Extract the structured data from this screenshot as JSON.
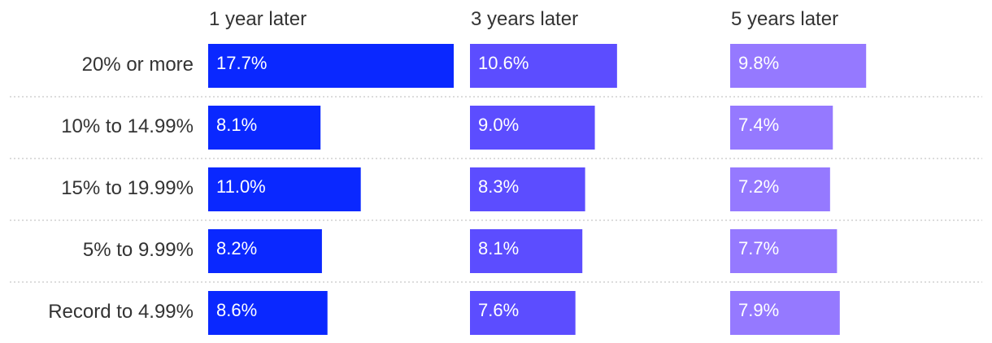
{
  "chart_data": {
    "type": "bar",
    "orientation": "horizontal",
    "layout": "small-multiples",
    "categories": [
      "20% or more",
      "10% to 14.99%",
      "15% to 19.99%",
      "5% to 9.99%",
      "Record to 4.99%"
    ],
    "series": [
      {
        "name": "1 year later",
        "color": "#0a28ff",
        "values": [
          17.7,
          8.1,
          11.0,
          8.2,
          8.6
        ],
        "labels": [
          "17.7%",
          "8.1%",
          "11.0%",
          "8.2%",
          "8.6%"
        ]
      },
      {
        "name": "3 years later",
        "color": "#5c4dff",
        "values": [
          10.6,
          9.0,
          8.3,
          8.1,
          7.6
        ],
        "labels": [
          "10.6%",
          "9.0%",
          "8.3%",
          "8.1%",
          "7.6%"
        ]
      },
      {
        "name": "5 years later",
        "color": "#9579ff",
        "values": [
          9.8,
          7.4,
          7.2,
          7.7,
          7.9
        ],
        "labels": [
          "9.8%",
          "7.4%",
          "7.2%",
          "7.7%",
          "7.9%"
        ]
      }
    ],
    "xlim": [
      0,
      17.7
    ],
    "grid": false,
    "row_separators": "dotted"
  }
}
